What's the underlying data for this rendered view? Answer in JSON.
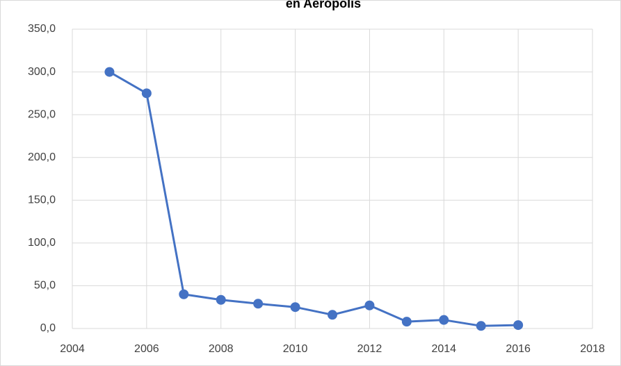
{
  "chart_data": {
    "type": "line",
    "title": "en Aerópolis",
    "x": [
      2005,
      2006,
      2007,
      2008,
      2009,
      2010,
      2011,
      2012,
      2013,
      2014,
      2015,
      2016
    ],
    "series": [
      {
        "color": "#4472c4",
        "values": [
          300,
          275,
          40,
          33.5,
          29,
          25,
          16,
          27,
          8,
          10,
          3,
          4
        ]
      }
    ],
    "xlim": [
      2004,
      2018
    ],
    "xticks": [
      2004,
      2006,
      2008,
      2010,
      2012,
      2014,
      2016,
      2018
    ],
    "ylim": [
      0,
      350
    ],
    "yticks": [
      {
        "value": 0,
        "label": "0,0"
      },
      {
        "value": 50,
        "label": "50,0"
      },
      {
        "value": 100,
        "label": "100,0"
      },
      {
        "value": 150,
        "label": "150,0"
      },
      {
        "value": 200,
        "label": "200,0"
      },
      {
        "value": 250,
        "label": "250,0"
      },
      {
        "value": 300,
        "label": "300,0"
      },
      {
        "value": 350,
        "label": "350,0"
      }
    ],
    "grid": true
  }
}
